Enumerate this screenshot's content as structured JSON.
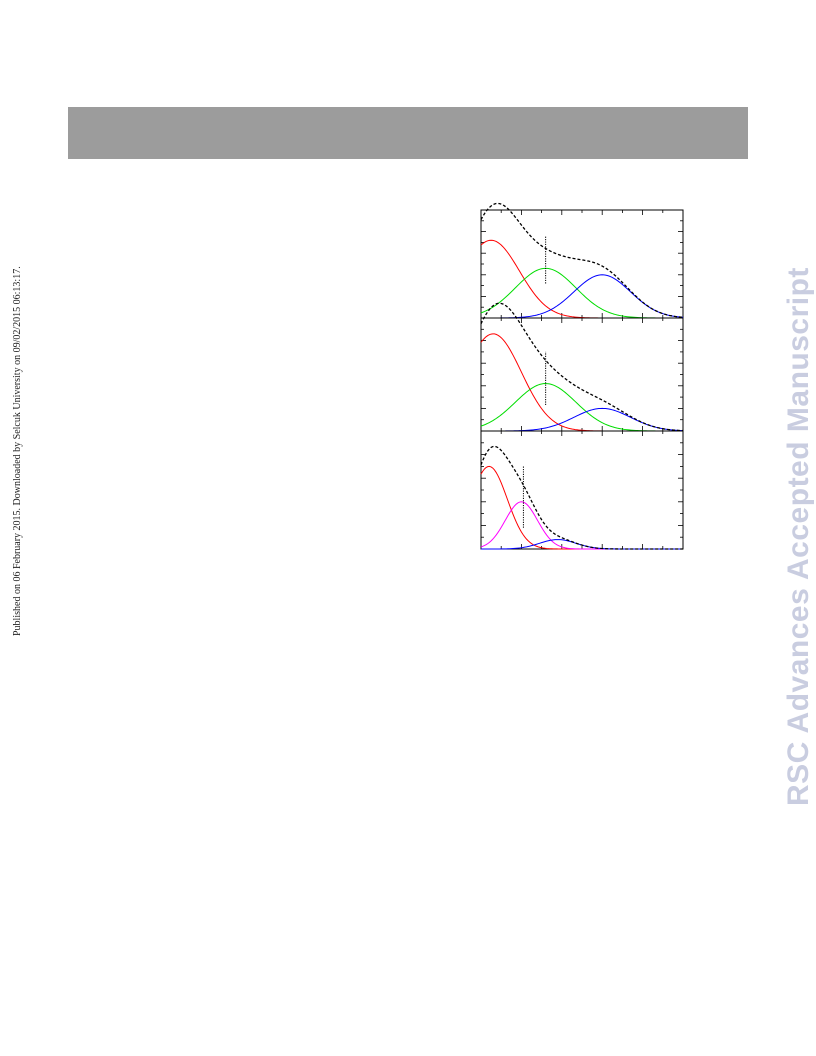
{
  "page": {
    "side_note": "Published on 06 February 2015. Downloaded by Selcuk University on 09/02/2015 06:13:17.",
    "watermark": "RSC Advances Accepted Manuscript"
  },
  "colors": {
    "header_bar": "#9c9c9c",
    "watermark": "#c9cde0",
    "red": "#ff0000",
    "green": "#00dd00",
    "blue": "#0000ff",
    "magenta": "#ff00ff",
    "envelope": "#000000"
  },
  "chart_data": [
    {
      "type": "line",
      "title": "",
      "xlabel": "",
      "ylabel": "",
      "xlim": [
        0,
        100
      ],
      "ylim": [
        0,
        100
      ],
      "grid": false,
      "components": [
        {
          "color": "red",
          "peaks": [
            {
              "mu": 5,
              "sigma": 14,
              "amp": 72
            }
          ]
        },
        {
          "color": "green",
          "peaks": [
            {
              "mu": 32,
              "sigma": 15,
              "amp": 46
            }
          ]
        },
        {
          "color": "blue",
          "peaks": [
            {
              "mu": 60,
              "sigma": 14,
              "amp": 40
            }
          ]
        }
      ],
      "envelope": {
        "style": "dashed",
        "color": "black",
        "peaks": [
          {
            "mu": 7,
            "sigma": 11,
            "amp": 23
          }
        ]
      },
      "marker_x": 32,
      "marker_range": [
        32,
        76
      ]
    },
    {
      "type": "line",
      "title": "",
      "xlabel": "",
      "ylabel": "",
      "xlim": [
        0,
        100
      ],
      "ylim": [
        0,
        100
      ],
      "grid": false,
      "components": [
        {
          "color": "red",
          "peaks": [
            {
              "mu": 6,
              "sigma": 14,
              "amp": 86
            }
          ]
        },
        {
          "color": "green",
          "peaks": [
            {
              "mu": 32,
              "sigma": 15,
              "amp": 42
            }
          ]
        },
        {
          "color": "blue",
          "peaks": [
            {
              "mu": 60,
              "sigma": 14,
              "amp": 20
            }
          ]
        }
      ],
      "envelope": {
        "style": "dashed",
        "color": "black",
        "peaks": [
          {
            "mu": 9,
            "sigma": 12,
            "amp": 16
          }
        ]
      },
      "marker_x": 32,
      "marker_range": [
        23,
        70
      ]
    },
    {
      "type": "line",
      "title": "",
      "xlabel": "",
      "ylabel": "",
      "xlim": [
        0,
        100
      ],
      "ylim": [
        0,
        100
      ],
      "grid": false,
      "components": [
        {
          "color": "red",
          "peaks": [
            {
              "mu": 4,
              "sigma": 9,
              "amp": 70
            }
          ]
        },
        {
          "color": "magenta",
          "peaks": [
            {
              "mu": 20,
              "sigma": 8,
              "amp": 40
            }
          ]
        },
        {
          "color": "blue",
          "peaks": [
            {
              "mu": 38,
              "sigma": 9,
              "amp": 8
            }
          ]
        }
      ],
      "envelope": {
        "style": "dashed",
        "color": "black",
        "peaks": [
          {
            "mu": 7,
            "sigma": 7,
            "amp": 10
          }
        ]
      },
      "marker_x": 21,
      "marker_range": [
        18,
        70
      ]
    }
  ]
}
